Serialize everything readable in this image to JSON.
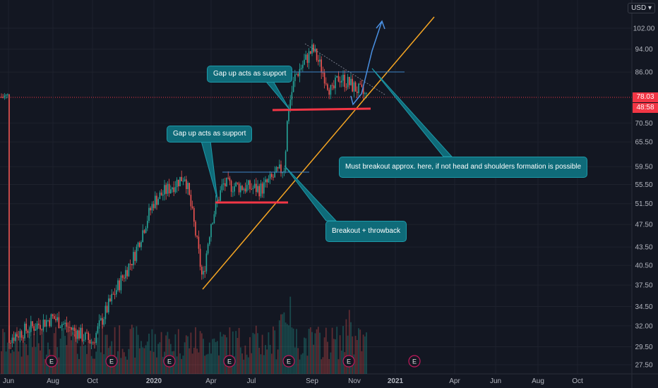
{
  "currency": "USD",
  "price_tags": [
    "78.03",
    "48:58"
  ],
  "callouts": [
    "Gap up acts as support",
    "Gap up acts as support",
    "Must breakout approx. here, if not head and shoulders formation is possible",
    "Breakout + throwback"
  ],
  "earnings_marker": "E",
  "colors": {
    "background": "#131722",
    "up": "#26a69a",
    "down": "#ef5350",
    "trendline": "#f6a623",
    "support": "#f23645",
    "range": "#3d85c6",
    "projection": "#4a90e2",
    "callout": "#0f6b79"
  },
  "chart_data": {
    "type": "candlestick",
    "yscale": "log",
    "ylim": [
      26.5,
      110
    ],
    "y_ticks": [
      "102.00",
      "94.00",
      "86.00",
      "78.03",
      "70.50",
      "65.50",
      "59.50",
      "55.50",
      "51.50",
      "47.50",
      "43.50",
      "40.50",
      "37.50",
      "34.50",
      "32.00",
      "29.50",
      "27.50"
    ],
    "x_ticks": [
      "Jun",
      "Aug",
      "Oct",
      "2020",
      "Apr",
      "Jul",
      "Sep",
      "Nov",
      "2021",
      "Apr",
      "Jun",
      "Aug",
      "Oct"
    ],
    "current_price": 78.03,
    "series_close_approx": [
      [
        "Jun",
        30.5
      ],
      [
        "Aug",
        33.0
      ],
      [
        "Oct",
        30.0
      ],
      [
        "Dec",
        42.0
      ],
      [
        "2020",
        52.0
      ],
      [
        "Feb",
        57.5
      ],
      [
        "Mar",
        38.0
      ],
      [
        "Apr",
        48.0
      ],
      [
        "May",
        55.5
      ],
      [
        "Jun",
        54.5
      ],
      [
        "Jul",
        59.5
      ],
      [
        "Jul-end",
        74.0
      ],
      [
        "Aug",
        84.5
      ],
      [
        "Sep",
        94.0
      ],
      [
        "Sep-end",
        79.0
      ],
      [
        "Oct",
        84.5
      ],
      [
        "Nov",
        78.03
      ]
    ],
    "annotations": {
      "support_levels": [
        52.0,
        74.5
      ],
      "consolidation_tops": [
        58.5,
        85.5
      ],
      "projection_target": 104
    }
  }
}
